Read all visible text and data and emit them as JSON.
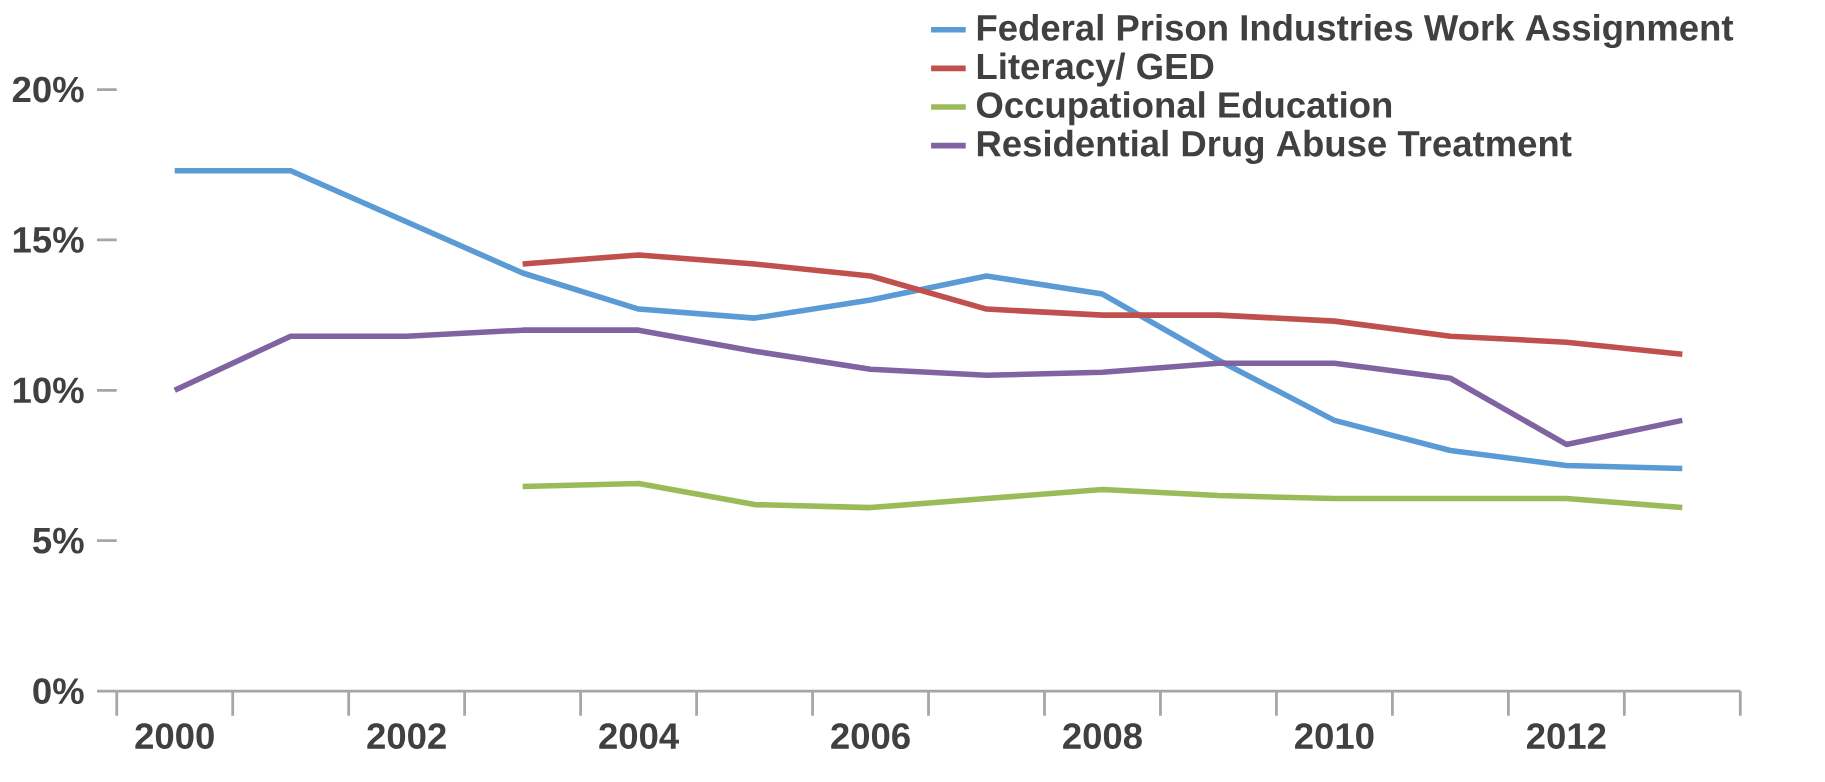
{
  "chart_data": {
    "type": "line",
    "categories": [
      "2000",
      null,
      "2002",
      null,
      "2004",
      null,
      "2006",
      null,
      "2008",
      null,
      "2010",
      null,
      "2012",
      null
    ],
    "series": [
      {
        "name": "Federal Prison Industries Work Assignment",
        "color": "#5b9bd5",
        "values": [
          17.3,
          17.3,
          15.6,
          13.9,
          12.7,
          12.4,
          13.0,
          13.8,
          13.2,
          11.0,
          9.0,
          8.0,
          7.5,
          7.4
        ]
      },
      {
        "name": "Literacy/ GED",
        "color": "#c0504d",
        "values": [
          null,
          null,
          null,
          14.2,
          14.5,
          14.2,
          13.8,
          12.7,
          12.5,
          12.5,
          12.3,
          11.8,
          11.6,
          11.2
        ]
      },
      {
        "name": "Occupational Education",
        "color": "#9bbb59",
        "values": [
          null,
          null,
          null,
          6.8,
          6.9,
          6.2,
          6.1,
          6.4,
          6.7,
          6.5,
          6.4,
          6.4,
          6.4,
          6.1
        ]
      },
      {
        "name": "Residential Drug Abuse Treatment",
        "color": "#8064a2",
        "values": [
          10.0,
          11.8,
          11.8,
          12.0,
          12.0,
          11.3,
          10.7,
          10.5,
          10.6,
          10.9,
          10.9,
          10.4,
          8.2,
          9.0
        ]
      }
    ],
    "ylim": [
      0,
      20
    ],
    "yticks": [
      {
        "value": 0,
        "label": "0%"
      },
      {
        "value": 5,
        "label": "5%"
      },
      {
        "value": 10,
        "label": "10%"
      },
      {
        "value": 15,
        "label": "15%"
      },
      {
        "value": 20,
        "label": "20%"
      }
    ],
    "legend": "top right",
    "marker": "none",
    "line_style": "solid"
  }
}
